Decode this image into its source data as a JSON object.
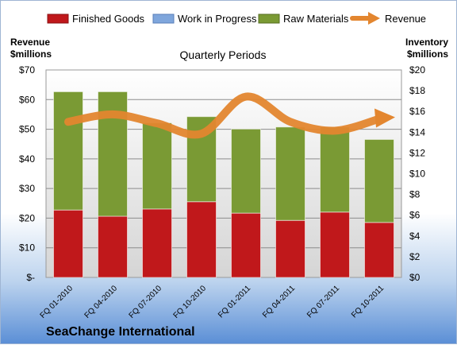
{
  "company": "SeaChange International",
  "chart_data": {
    "type": "bar",
    "stacked": true,
    "title": "Quarterly Periods",
    "categories": [
      "FQ 01-2010",
      "FQ 04-2010",
      "FQ 07-2010",
      "FQ 10-2010",
      "FQ 01-2011",
      "FQ 04-2011",
      "FQ 07-2011",
      "FQ 10-2011"
    ],
    "left_axis": {
      "label_line1": "Revenue",
      "label_line2": "$millions",
      "ylim": [
        0,
        70
      ],
      "ticks": [
        "$-",
        "$10",
        "$20",
        "$30",
        "$40",
        "$50",
        "$60",
        "$70"
      ]
    },
    "right_axis": {
      "label_line1": "Inventory",
      "label_line2": "$millions",
      "ylim": [
        0,
        20
      ],
      "ticks": [
        "$0",
        "$2",
        "$4",
        "$6",
        "$8",
        "$10",
        "$12",
        "$14",
        "$16",
        "$18",
        "$20"
      ]
    },
    "series": [
      {
        "name": "Finished Goods",
        "axis": "right",
        "color": "#c0181b",
        "values": [
          6.5,
          5.9,
          6.6,
          7.3,
          6.2,
          5.5,
          6.3,
          5.3
        ]
      },
      {
        "name": "Work in Progress",
        "axis": "right",
        "color": "#7fa6dc",
        "values": [
          0,
          0,
          0,
          0,
          0,
          0,
          0,
          0
        ]
      },
      {
        "name": "Raw Materials",
        "axis": "right",
        "color": "#7a9a34",
        "values": [
          11.4,
          12.0,
          8.3,
          8.2,
          8.1,
          9.0,
          8.2,
          8.0
        ]
      },
      {
        "name": "Revenue",
        "axis": "left",
        "type": "line",
        "color": "#e3862f",
        "values": [
          52.5,
          55.0,
          52.0,
          48.5,
          61.0,
          52.5,
          49.5,
          53.5
        ]
      }
    ],
    "grid": true,
    "legend": "top"
  }
}
